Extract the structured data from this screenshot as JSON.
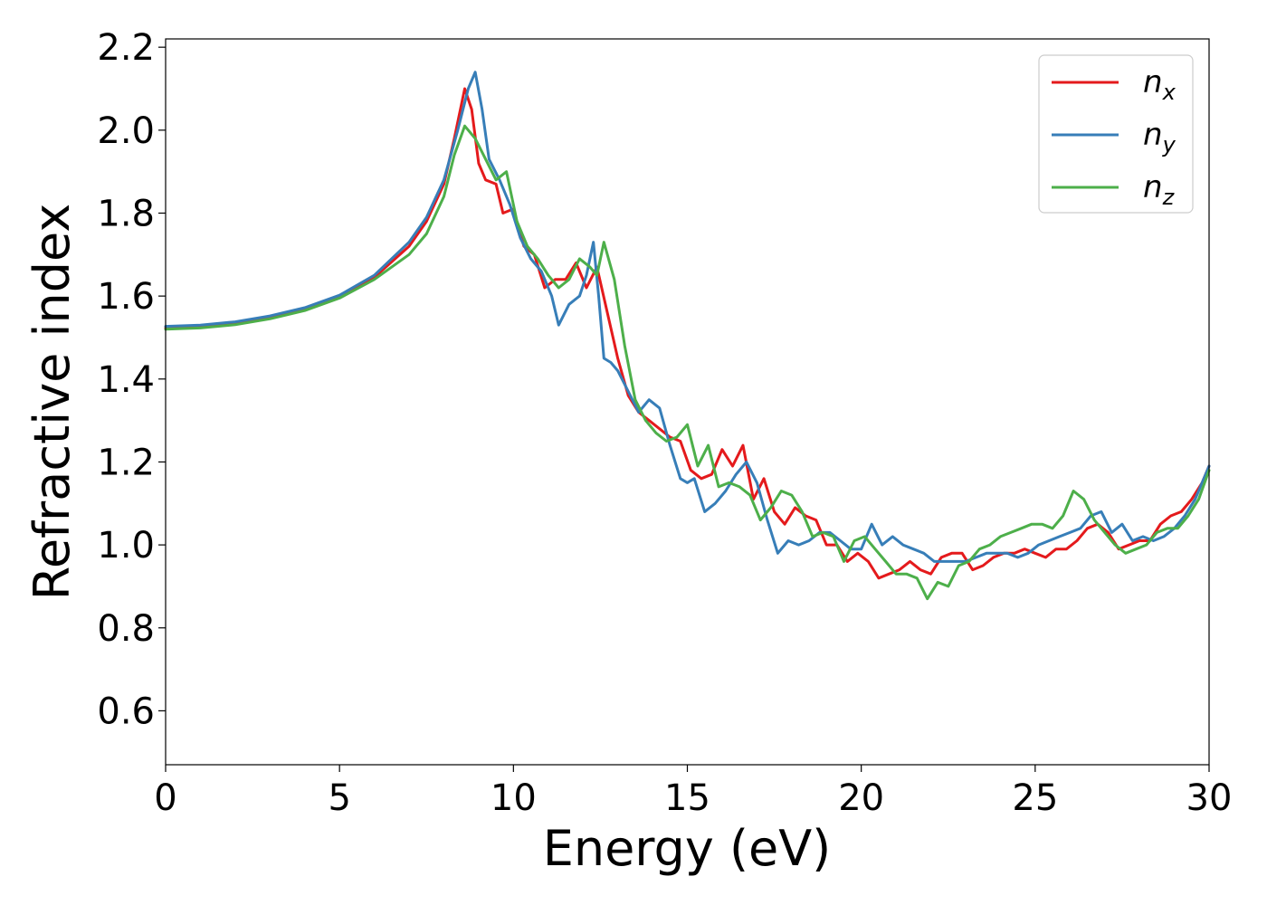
{
  "chart_data": {
    "type": "line",
    "title": "",
    "xlabel": "Energy (eV)",
    "ylabel": "Refractive index",
    "xlim": [
      0,
      30
    ],
    "ylim": [
      0.47,
      2.22
    ],
    "xticks": [
      0,
      5,
      10,
      15,
      20,
      25,
      30
    ],
    "xtick_labels": [
      "0",
      "5",
      "10",
      "15",
      "20",
      "25",
      "30"
    ],
    "yticks": [
      0.6,
      0.8,
      1.0,
      1.2,
      1.4,
      1.6,
      1.8,
      2.0,
      2.2
    ],
    "ytick_labels": [
      "0.6",
      "0.8",
      "1.0",
      "1.2",
      "1.4",
      "1.6",
      "1.8",
      "2.0",
      "2.2"
    ],
    "grid": false,
    "legend_position": "top-right",
    "series": [
      {
        "name": "n",
        "subscript": "x",
        "color": "#e41a1c",
        "x": [
          0,
          1,
          2,
          3,
          4,
          5,
          6,
          7,
          7.5,
          8,
          8.3,
          8.6,
          8.8,
          9.0,
          9.2,
          9.5,
          9.7,
          10.0,
          10.3,
          10.6,
          10.9,
          11.2,
          11.5,
          11.8,
          12.1,
          12.4,
          12.7,
          13.0,
          13.3,
          13.6,
          13.9,
          14.2,
          14.5,
          14.8,
          15.1,
          15.4,
          15.7,
          16.0,
          16.3,
          16.6,
          16.9,
          17.2,
          17.5,
          17.8,
          18.1,
          18.4,
          18.7,
          19.0,
          19.3,
          19.6,
          19.9,
          20.2,
          20.5,
          20.8,
          21.1,
          21.4,
          21.7,
          22.0,
          22.3,
          22.6,
          22.9,
          23.2,
          23.5,
          23.8,
          24.1,
          24.4,
          24.7,
          25.0,
          25.3,
          25.6,
          25.9,
          26.2,
          26.5,
          26.8,
          27.1,
          27.4,
          27.7,
          28.0,
          28.3,
          28.6,
          28.9,
          29.2,
          29.5,
          29.8,
          30
        ],
        "y": [
          1.523,
          1.526,
          1.535,
          1.55,
          1.57,
          1.6,
          1.645,
          1.72,
          1.78,
          1.87,
          1.98,
          2.1,
          2.05,
          1.92,
          1.88,
          1.87,
          1.8,
          1.81,
          1.72,
          1.7,
          1.62,
          1.64,
          1.64,
          1.68,
          1.62,
          1.67,
          1.56,
          1.45,
          1.36,
          1.32,
          1.3,
          1.28,
          1.26,
          1.25,
          1.18,
          1.16,
          1.17,
          1.23,
          1.19,
          1.24,
          1.11,
          1.16,
          1.08,
          1.05,
          1.09,
          1.07,
          1.06,
          1.0,
          1.0,
          0.96,
          0.98,
          0.96,
          0.92,
          0.93,
          0.94,
          0.96,
          0.94,
          0.93,
          0.97,
          0.98,
          0.98,
          0.94,
          0.95,
          0.97,
          0.98,
          0.98,
          0.99,
          0.98,
          0.97,
          0.99,
          0.99,
          1.01,
          1.04,
          1.05,
          1.03,
          0.99,
          1.0,
          1.01,
          1.01,
          1.05,
          1.07,
          1.08,
          1.11,
          1.15,
          1.19
        ]
      },
      {
        "name": "n",
        "subscript": "y",
        "color": "#377eb8",
        "x": [
          0,
          1,
          2,
          3,
          4,
          5,
          6,
          7,
          7.5,
          8,
          8.4,
          8.7,
          8.9,
          9.1,
          9.3,
          9.6,
          9.9,
          10.2,
          10.5,
          10.8,
          11.1,
          11.3,
          11.6,
          11.9,
          12.1,
          12.3,
          12.45,
          12.6,
          12.8,
          13.0,
          13.3,
          13.6,
          13.9,
          14.2,
          14.5,
          14.8,
          15.0,
          15.2,
          15.5,
          15.8,
          16.1,
          16.4,
          16.7,
          17.0,
          17.3,
          17.6,
          17.9,
          18.2,
          18.5,
          18.8,
          19.1,
          19.4,
          19.7,
          20.0,
          20.3,
          20.6,
          20.9,
          21.2,
          21.5,
          21.8,
          22.1,
          22.4,
          22.7,
          23.0,
          23.3,
          23.6,
          23.9,
          24.2,
          24.5,
          24.8,
          25.1,
          25.4,
          25.7,
          26.0,
          26.3,
          26.6,
          26.9,
          27.2,
          27.5,
          27.8,
          28.1,
          28.4,
          28.7,
          29.0,
          29.3,
          29.6,
          30
        ],
        "y": [
          1.527,
          1.53,
          1.538,
          1.552,
          1.572,
          1.602,
          1.65,
          1.73,
          1.79,
          1.88,
          2.0,
          2.1,
          2.14,
          2.05,
          1.93,
          1.88,
          1.82,
          1.74,
          1.69,
          1.66,
          1.6,
          1.53,
          1.58,
          1.6,
          1.65,
          1.73,
          1.6,
          1.45,
          1.44,
          1.42,
          1.37,
          1.32,
          1.35,
          1.33,
          1.24,
          1.16,
          1.15,
          1.16,
          1.08,
          1.1,
          1.13,
          1.17,
          1.2,
          1.15,
          1.06,
          0.98,
          1.01,
          1.0,
          1.01,
          1.03,
          1.03,
          1.01,
          0.99,
          0.99,
          1.05,
          1.0,
          1.02,
          1.0,
          0.99,
          0.98,
          0.96,
          0.96,
          0.96,
          0.96,
          0.97,
          0.98,
          0.98,
          0.98,
          0.97,
          0.98,
          1.0,
          1.01,
          1.02,
          1.03,
          1.04,
          1.07,
          1.08,
          1.03,
          1.05,
          1.01,
          1.02,
          1.01,
          1.02,
          1.04,
          1.07,
          1.11,
          1.19
        ]
      },
      {
        "name": "n",
        "subscript": "z",
        "color": "#4daf4a",
        "x": [
          0,
          1,
          2,
          3,
          4,
          5,
          6,
          7,
          7.5,
          8,
          8.3,
          8.6,
          8.9,
          9.2,
          9.5,
          9.8,
          10.1,
          10.4,
          10.7,
          11.0,
          11.3,
          11.6,
          11.9,
          12.2,
          12.4,
          12.6,
          12.9,
          13.2,
          13.5,
          13.8,
          14.1,
          14.4,
          14.7,
          15.0,
          15.3,
          15.6,
          15.9,
          16.2,
          16.5,
          16.8,
          17.1,
          17.4,
          17.7,
          18.0,
          18.3,
          18.6,
          18.9,
          19.2,
          19.5,
          19.8,
          20.1,
          20.4,
          20.7,
          21.0,
          21.3,
          21.6,
          21.9,
          22.2,
          22.5,
          22.8,
          23.1,
          23.4,
          23.7,
          24.0,
          24.3,
          24.6,
          24.9,
          25.2,
          25.5,
          25.8,
          26.1,
          26.4,
          26.7,
          27.0,
          27.3,
          27.6,
          27.9,
          28.2,
          28.5,
          28.8,
          29.1,
          29.4,
          29.7,
          30
        ],
        "y": [
          1.52,
          1.523,
          1.531,
          1.545,
          1.565,
          1.595,
          1.64,
          1.7,
          1.75,
          1.84,
          1.94,
          2.01,
          1.98,
          1.93,
          1.88,
          1.9,
          1.78,
          1.72,
          1.69,
          1.65,
          1.62,
          1.64,
          1.69,
          1.67,
          1.65,
          1.73,
          1.64,
          1.48,
          1.35,
          1.3,
          1.27,
          1.25,
          1.26,
          1.29,
          1.19,
          1.24,
          1.14,
          1.15,
          1.14,
          1.12,
          1.06,
          1.09,
          1.13,
          1.12,
          1.08,
          1.02,
          1.03,
          1.02,
          0.96,
          1.01,
          1.02,
          0.99,
          0.96,
          0.93,
          0.93,
          0.92,
          0.87,
          0.91,
          0.9,
          0.95,
          0.96,
          0.99,
          1.0,
          1.02,
          1.03,
          1.04,
          1.05,
          1.05,
          1.04,
          1.07,
          1.13,
          1.11,
          1.06,
          1.03,
          1.0,
          0.98,
          0.99,
          1.0,
          1.03,
          1.04,
          1.04,
          1.07,
          1.11,
          1.18
        ]
      }
    ]
  }
}
